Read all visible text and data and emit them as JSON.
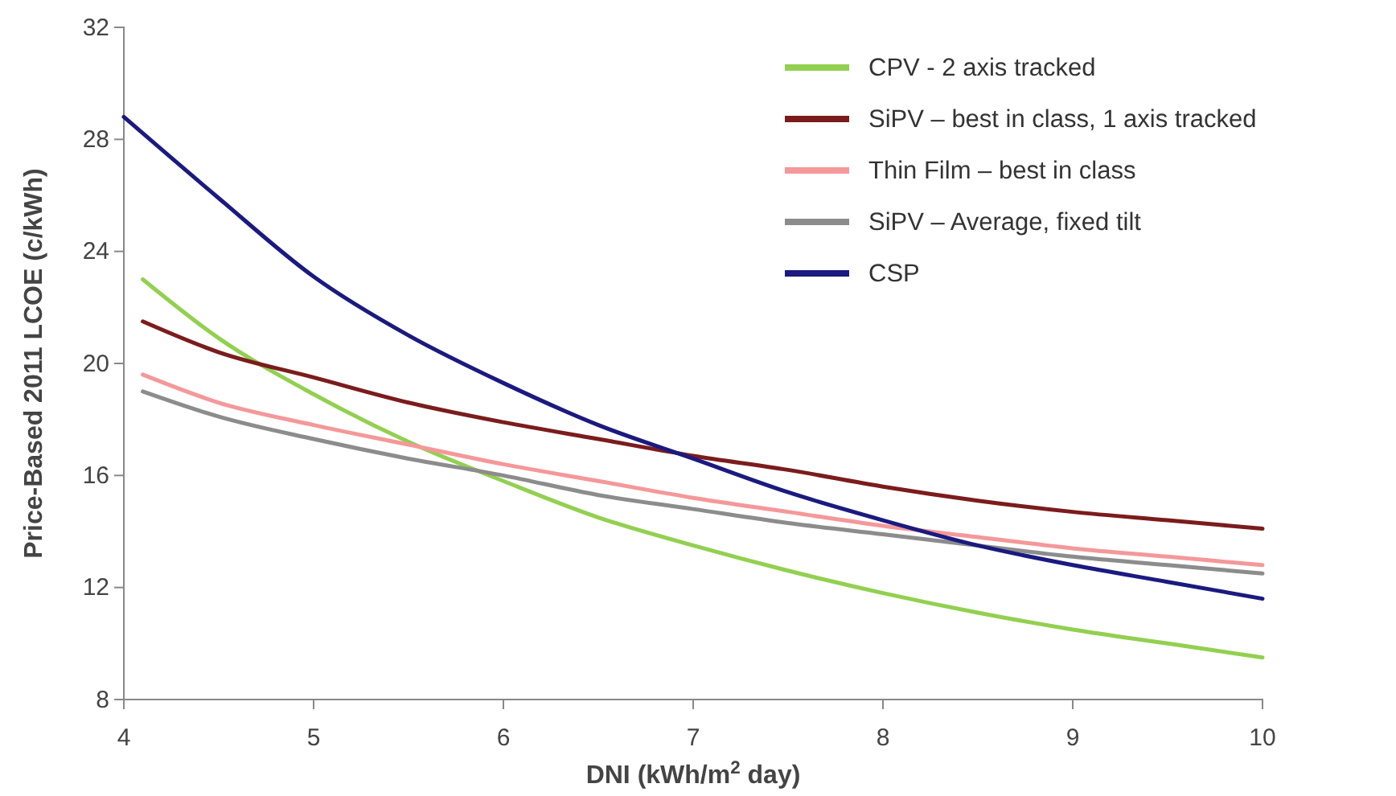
{
  "chart_data": {
    "type": "line",
    "xlabel": "DNI  (kWh/m$^{2}$ day)",
    "ylabel": "Price-Based 2011 LCOE (c/kWh)",
    "xlim": [
      4,
      10
    ],
    "xticks": [
      4,
      5,
      6,
      7,
      8,
      9,
      10
    ],
    "ylim": [
      8,
      32
    ],
    "yticks": [
      8,
      12,
      16,
      20,
      24,
      28,
      32
    ],
    "legend": "top right",
    "line_style": "solid",
    "series": [
      {
        "name": "CPV  - 2 axis tracked",
        "color": "#92d050",
        "x": [
          4.1,
          4.5,
          5,
          5.5,
          6,
          6.5,
          7,
          7.5,
          8,
          8.5,
          9,
          9.5,
          10
        ],
        "values": [
          23.0,
          20.9,
          18.9,
          17.2,
          15.8,
          14.5,
          13.5,
          12.6,
          11.8,
          11.1,
          10.5,
          10.0,
          9.5
        ]
      },
      {
        "name": "SiPV – best in class, 1 axis tracked",
        "color": "#7b1c1c",
        "x": [
          4.1,
          4.5,
          5,
          5.5,
          6,
          6.5,
          7,
          7.5,
          8,
          8.5,
          9,
          9.5,
          10
        ],
        "values": [
          21.5,
          20.4,
          19.5,
          18.6,
          17.9,
          17.3,
          16.7,
          16.2,
          15.6,
          15.1,
          14.7,
          14.4,
          14.1
        ]
      },
      {
        "name": "Thin Film – best in class",
        "color": "#f4989a",
        "x": [
          4.1,
          4.5,
          5,
          5.5,
          6,
          6.5,
          7,
          7.5,
          8,
          8.5,
          9,
          9.5,
          10
        ],
        "values": [
          19.6,
          18.6,
          17.8,
          17.1,
          16.4,
          15.8,
          15.2,
          14.7,
          14.2,
          13.8,
          13.4,
          13.1,
          12.8
        ]
      },
      {
        "name": "SiPV – Average, fixed tilt",
        "color": "#8c8c8c",
        "x": [
          4.1,
          4.5,
          5,
          5.5,
          6,
          6.5,
          7,
          7.5,
          8,
          8.5,
          9,
          9.5,
          10
        ],
        "values": [
          19.0,
          18.1,
          17.3,
          16.6,
          16.0,
          15.3,
          14.8,
          14.3,
          13.9,
          13.5,
          13.1,
          12.8,
          12.5
        ]
      },
      {
        "name": "CSP",
        "color": "#1a1a80",
        "x": [
          4,
          4.5,
          5,
          5.5,
          6,
          6.5,
          7,
          7.5,
          8,
          8.5,
          9,
          9.5,
          10
        ],
        "values": [
          28.8,
          25.9,
          23.1,
          21.0,
          19.3,
          17.8,
          16.6,
          15.4,
          14.4,
          13.5,
          12.8,
          12.2,
          11.6
        ]
      }
    ]
  }
}
